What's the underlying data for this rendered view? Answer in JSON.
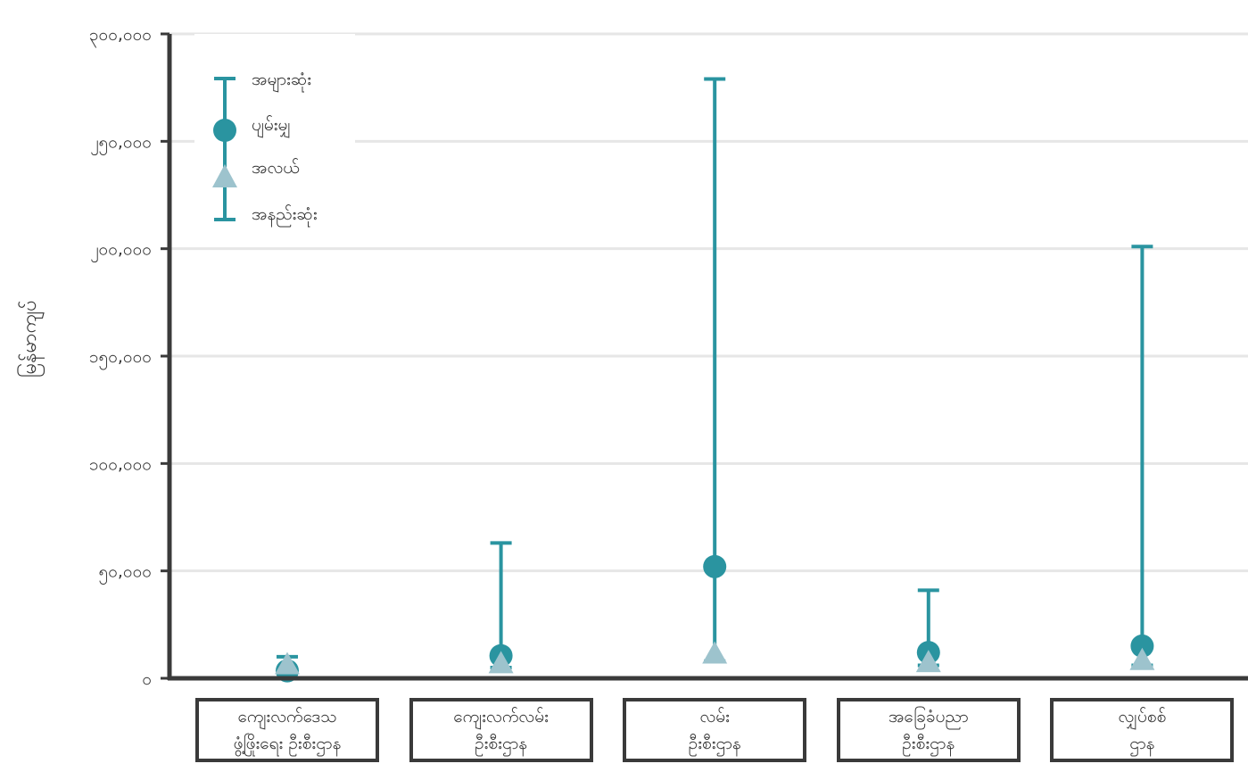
{
  "chart_data": {
    "type": "range",
    "ylabel": "မြန်မာကျပ်",
    "ylim": [
      0,
      300000
    ],
    "yticks": [
      {
        "value": 0,
        "label": "၀"
      },
      {
        "value": 50000,
        "label": "၅၀,၀၀၀"
      },
      {
        "value": 100000,
        "label": "၁၀၀,၀၀၀"
      },
      {
        "value": 150000,
        "label": "၁၅၀,၀၀၀"
      },
      {
        "value": 200000,
        "label": "၂၀၀,၀၀၀"
      },
      {
        "value": 250000,
        "label": "၂၅၀,၀၀၀"
      },
      {
        "value": 300000,
        "label": "၃၀၀,၀၀၀"
      }
    ],
    "grid": true,
    "legend_position": "top-left",
    "legend": {
      "max": "အများဆုံး",
      "mean": "ပျမ်းမျှ",
      "median": "အလယ်",
      "min": "အနည်းဆုံး"
    },
    "categories": [
      {
        "line1": "ကျေးလက်ဒေသ",
        "line2": "ဖွံ့ဖြိုးရေး ဦးစီးဌာန",
        "max": 10000,
        "min": 2000,
        "mean": 3500,
        "median": 6000
      },
      {
        "line1": "ကျေးလက်လမ်း",
        "line2": "ဦးစီးဌာန",
        "max": 63000,
        "min": 5000,
        "mean": 10500,
        "median": 6500
      },
      {
        "line1": "လမ်း",
        "line2": "ဦးစီးဌာန",
        "max": 279000,
        "min": 8000,
        "mean": 52000,
        "median": 11000
      },
      {
        "line1": "အခြေခံပညာ",
        "line2": "ဦးစီးဌာန",
        "max": 41000,
        "min": 6000,
        "mean": 12000,
        "median": 7000
      },
      {
        "line1": "လျှပ်စစ်",
        "line2": "ဌာန",
        "max": 201000,
        "min": 6000,
        "mean": 15000,
        "median": 8000
      }
    ],
    "colors": {
      "range": "#2a94a0",
      "mean": "#2a94a0",
      "median": "#9dc3cd",
      "axis": "#3a3a3a",
      "grid": "#e6e6e6"
    }
  }
}
